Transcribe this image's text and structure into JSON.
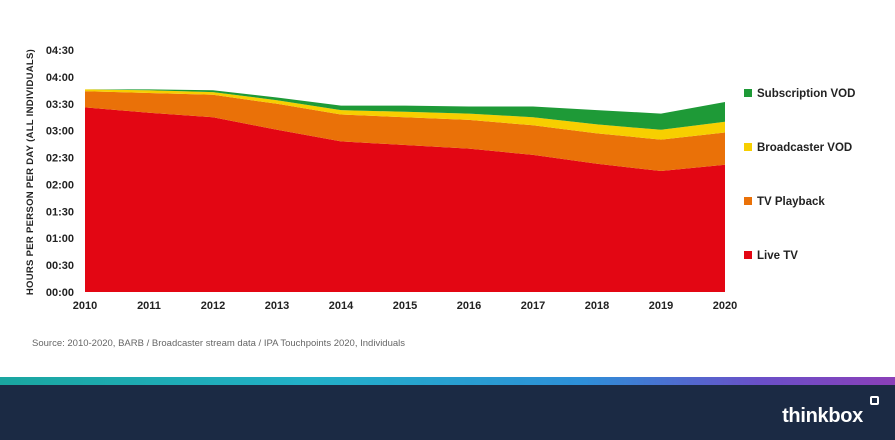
{
  "chart_data": {
    "type": "area",
    "stacked": true,
    "x": [
      "2010",
      "2011",
      "2012",
      "2013",
      "2014",
      "2015",
      "2016",
      "2017",
      "2018",
      "2019",
      "2020"
    ],
    "y_ticks": [
      "00:00",
      "00:30",
      "01:00",
      "01:30",
      "02:00",
      "02:30",
      "03:00",
      "03:30",
      "04:00",
      "04:30"
    ],
    "ylim_minutes": [
      0,
      270
    ],
    "ylabel": "HOURS PER PERSON PER DAY (ALL INDIVIDUALS)",
    "xlabel": "",
    "legend_position": "right",
    "series": [
      {
        "name": "Live TV",
        "color": "#e30613",
        "values_minutes": [
          206,
          200,
          195,
          181,
          168,
          164,
          160,
          153,
          143,
          135,
          142
        ]
      },
      {
        "name": "TV Playback",
        "color": "#ea7108",
        "values_minutes": [
          18,
          22,
          25,
          29,
          30,
          31,
          32,
          33,
          34,
          35,
          36
        ]
      },
      {
        "name": "Broadcaster VOD",
        "color": "#f7cf00",
        "values_minutes": [
          2,
          3,
          3,
          4,
          5,
          6,
          7,
          9,
          10,
          11,
          12
        ]
      },
      {
        "name": "Subscription VOD",
        "color": "#1e9a37",
        "values_minutes": [
          0,
          1,
          2,
          3,
          5,
          7,
          8,
          12,
          16,
          18,
          22
        ]
      }
    ]
  },
  "source_text": "Source: 2010-2020,  BARB / Broadcaster stream data / IPA Touchpoints 2020, Individuals",
  "brand": {
    "name": "thinkbox"
  }
}
